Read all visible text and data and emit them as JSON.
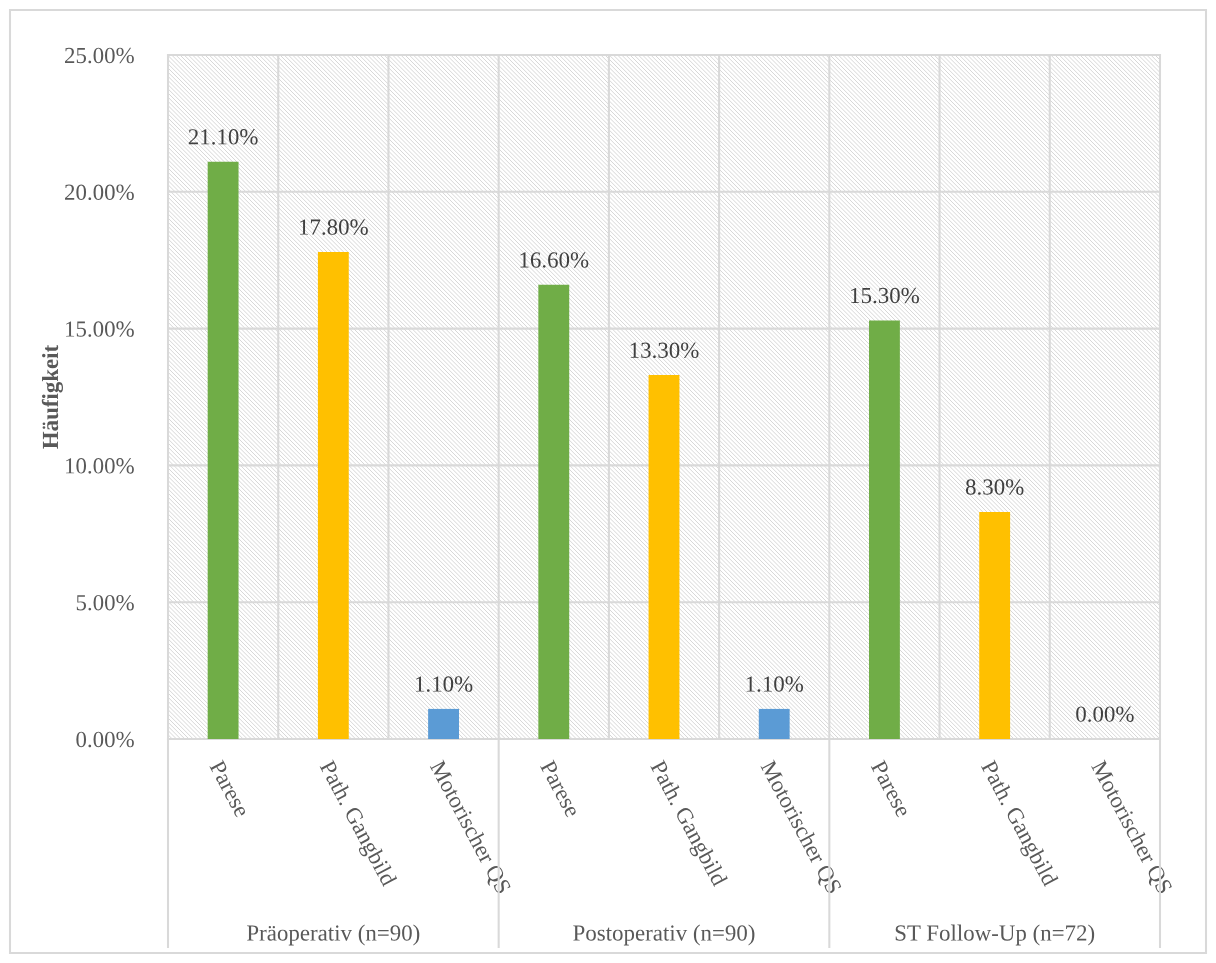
{
  "chart_data": {
    "type": "bar",
    "ylabel": "Häufigkeit",
    "categories": [
      "Parese",
      "Path. Gangbild",
      "Motorischer QS",
      "Parese",
      "Path. Gangbild",
      "Motorischer QS",
      "Parese",
      "Path. Gangbild",
      "Motorischer QS"
    ],
    "values": [
      21.1,
      17.8,
      1.1,
      16.6,
      13.3,
      1.1,
      15.3,
      8.3,
      0.0
    ],
    "colors": [
      "#70ad47",
      "#ffc000",
      "#5b9bd5",
      "#70ad47",
      "#ffc000",
      "#5b9bd5",
      "#70ad47",
      "#ffc000",
      "#5b9bd5"
    ],
    "value_labels": [
      "21.10%",
      "17.80%",
      "1.10%",
      "16.60%",
      "13.30%",
      "1.10%",
      "15.30%",
      "8.30%",
      "0.00%"
    ],
    "ylim": [
      0,
      25
    ],
    "yticks": [
      {
        "value": 0,
        "label": "0.00%"
      },
      {
        "value": 5,
        "label": "5.00%"
      },
      {
        "value": 10,
        "label": "10.00%"
      },
      {
        "value": 15,
        "label": "15.00%"
      },
      {
        "value": 20,
        "label": "20.00%"
      },
      {
        "value": 25,
        "label": "25.00%"
      }
    ],
    "grid": true,
    "annotations": [
      "Präoperativ (n=90)",
      "Postoperativ (n=90)",
      "ST Follow-Up (n=72)"
    ]
  }
}
